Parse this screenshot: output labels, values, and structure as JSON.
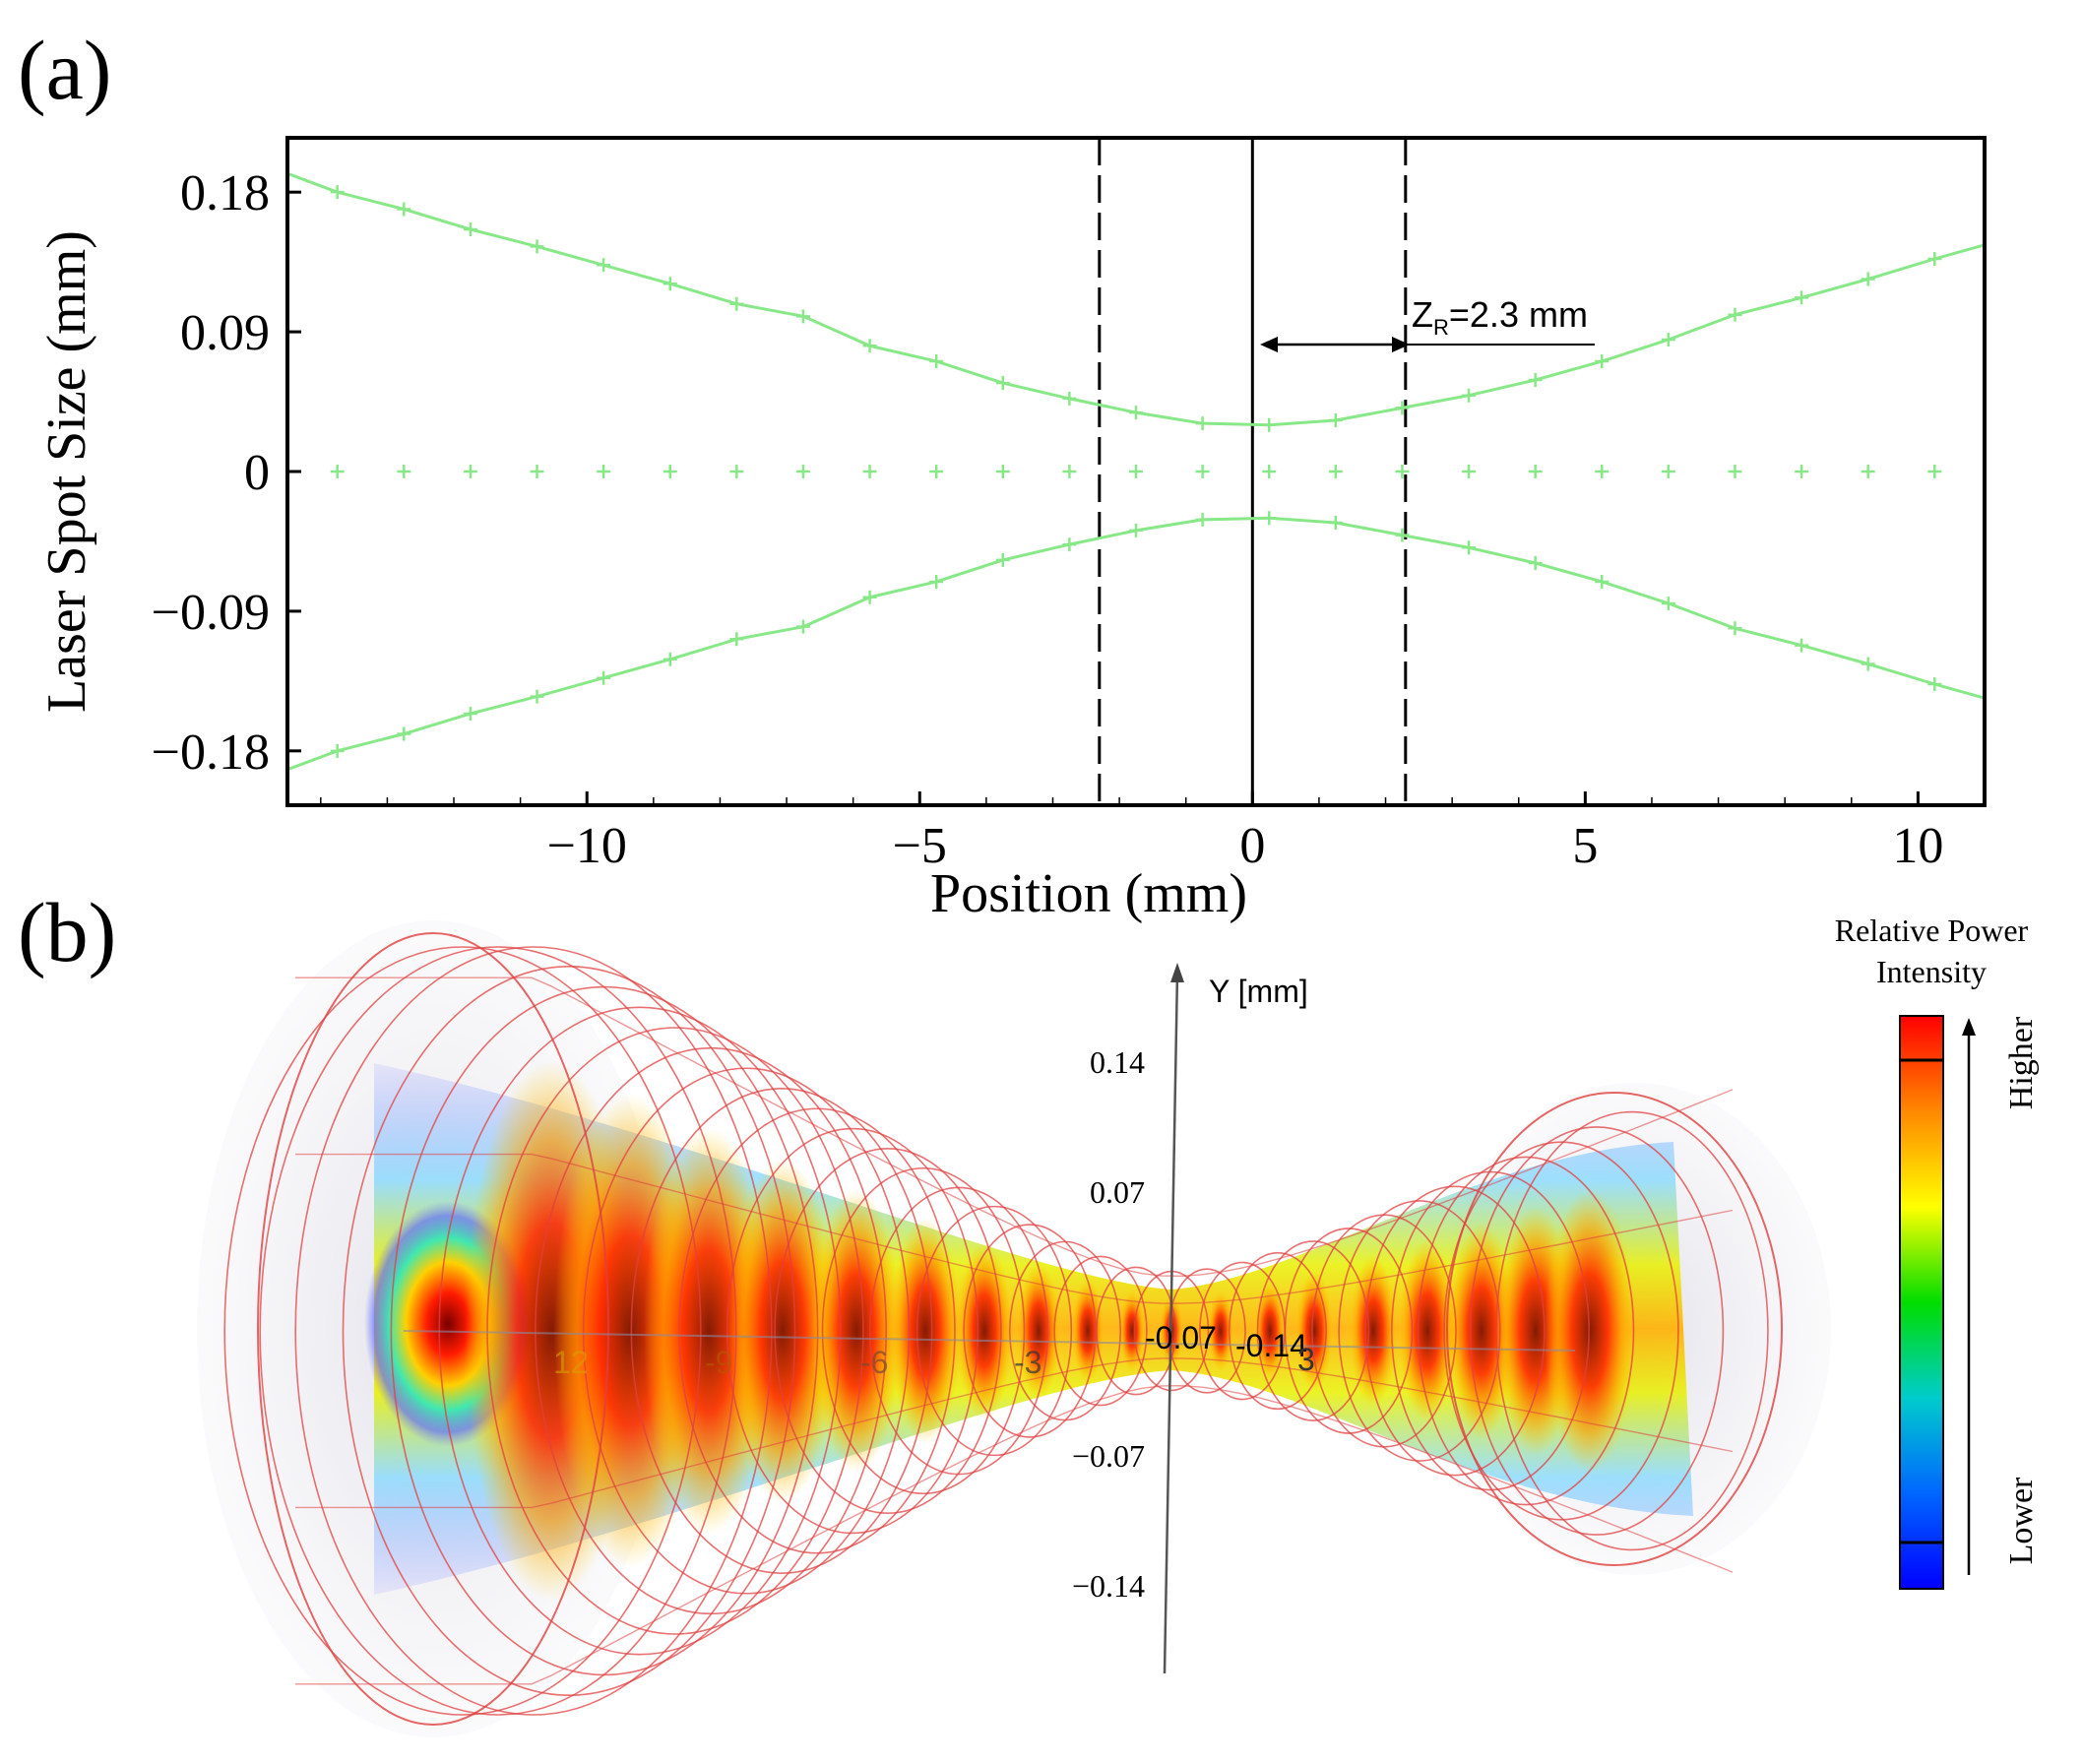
{
  "panel_labels": {
    "a": "(a)",
    "b": "(b)"
  },
  "chart_data": [
    {
      "type": "line",
      "title": "",
      "xlabel": "Position (mm)",
      "ylabel": "Laser Spot Size (mm)",
      "xlim": [
        -14.5,
        11
      ],
      "ylim": [
        -0.215,
        0.215
      ],
      "xticks": [
        -10,
        -5,
        0,
        5,
        10
      ],
      "xtick_labels": [
        "−10",
        "−5",
        "0",
        "5",
        "10"
      ],
      "yticks": [
        0.18,
        0.09,
        0,
        -0.09,
        -0.18
      ],
      "ytick_labels": [
        "0.18",
        "0.09",
        "0",
        "−0.09",
        "−0.18"
      ],
      "waist_radius_mm": 0.03,
      "rayleigh_range_mm": 2.3,
      "series": [
        {
          "name": "upper envelope",
          "color": "#88e888",
          "x": [
            -14.5,
            -13.75,
            -12.75,
            -11.75,
            -10.75,
            -9.75,
            -8.75,
            -7.75,
            -6.75,
            -5.75,
            -4.75,
            -3.75,
            -2.75,
            -1.75,
            -0.75,
            0.25,
            1.25,
            2.25,
            3.25,
            4.25,
            5.25,
            6.25,
            7.25,
            8.25,
            9.25,
            10.25,
            11.0
          ],
          "y": [
            0.192,
            0.18,
            0.169,
            0.156,
            0.145,
            0.133,
            0.121,
            0.108,
            0.1,
            0.081,
            0.071,
            0.057,
            0.047,
            0.038,
            0.031,
            0.03,
            0.033,
            0.041,
            0.049,
            0.059,
            0.071,
            0.085,
            0.101,
            0.112,
            0.124,
            0.137,
            0.146
          ]
        },
        {
          "name": "lower envelope",
          "color": "#88e888",
          "x": [
            -14.5,
            -13.75,
            -12.75,
            -11.75,
            -10.75,
            -9.75,
            -8.75,
            -7.75,
            -6.75,
            -5.75,
            -4.75,
            -3.75,
            -2.75,
            -1.75,
            -0.75,
            0.25,
            1.25,
            2.25,
            3.25,
            4.25,
            5.25,
            6.25,
            7.25,
            8.25,
            9.25,
            10.25,
            11.0
          ],
          "y": [
            -0.192,
            -0.18,
            -0.169,
            -0.156,
            -0.145,
            -0.133,
            -0.121,
            -0.108,
            -0.1,
            -0.081,
            -0.071,
            -0.057,
            -0.047,
            -0.038,
            -0.031,
            -0.03,
            -0.033,
            -0.041,
            -0.049,
            -0.059,
            -0.071,
            -0.085,
            -0.101,
            -0.112,
            -0.124,
            -0.137,
            -0.146
          ]
        },
        {
          "name": "axis markers",
          "color": "#88e888",
          "style": "markers",
          "x": [
            -13.75,
            -12.75,
            -11.75,
            -10.75,
            -9.75,
            -8.75,
            -7.75,
            -6.75,
            -5.75,
            -4.75,
            -3.75,
            -2.75,
            -1.75,
            -0.75,
            0.25,
            1.25,
            2.25,
            3.25,
            4.25,
            5.25,
            6.25,
            7.25,
            8.25,
            9.25,
            10.25
          ],
          "y": [
            0,
            0,
            0,
            0,
            0,
            0,
            0,
            0,
            0,
            0,
            0,
            0,
            0,
            0,
            0,
            0,
            0,
            0,
            0,
            0,
            0,
            0,
            0,
            0,
            0
          ]
        }
      ],
      "vertical_lines": [
        {
          "x": -2.3,
          "style": "dashed",
          "name": "rayleigh-left-line"
        },
        {
          "x": 0.0,
          "style": "solid",
          "name": "waist-line"
        },
        {
          "x": 2.3,
          "style": "dashed",
          "name": "rayleigh-right-line"
        }
      ],
      "annotation": {
        "main": "Z",
        "sub": "R",
        "rest": "=2.3 mm",
        "x_from": 0,
        "x_to": 2.3
      }
    },
    {
      "type": "3d-beam-intensity",
      "axis_label": "Y [mm]",
      "yticks": [
        0.14,
        0.07,
        -0.07,
        -0.14
      ],
      "ytick_labels": [
        "0.14",
        "0.07",
        "−0.07",
        "−0.14"
      ],
      "inline_labels": [
        "12",
        "-9",
        "-6",
        "-3",
        "-0.07",
        "-0.14",
        "3"
      ],
      "colorbar": {
        "title_line1": "Relative Power",
        "title_line2": "Intensity",
        "high_label": "Higher",
        "low_label": "Lower",
        "colors": [
          "#ff0000",
          "#ff8800",
          "#ffff00",
          "#00dd00",
          "#00cccc",
          "#0066ff",
          "#0000ff"
        ]
      }
    }
  ]
}
